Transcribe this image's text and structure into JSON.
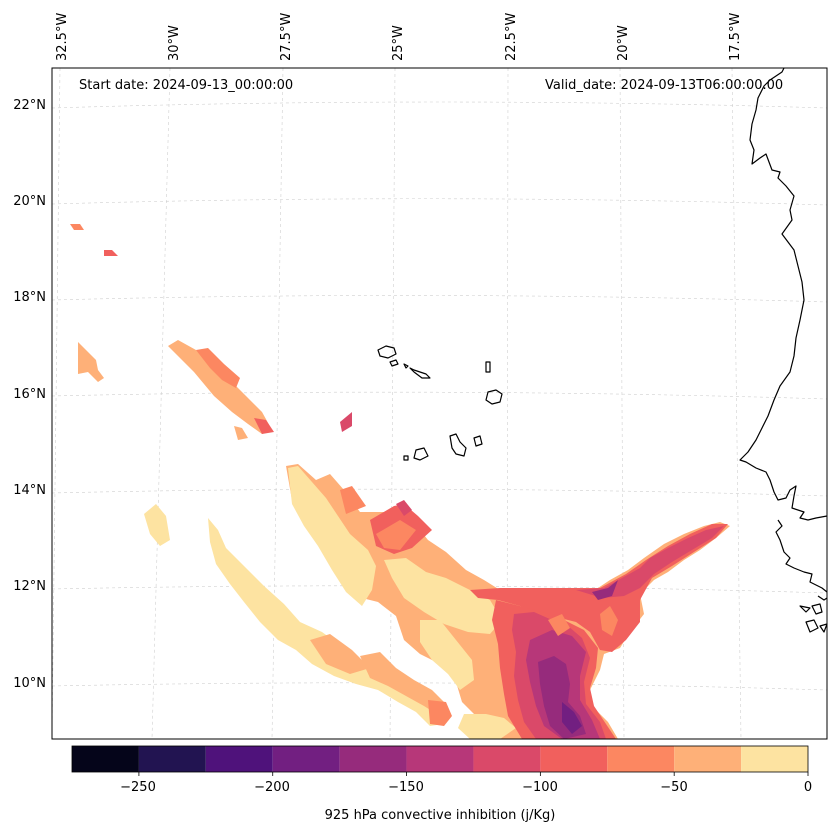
{
  "map": {
    "start_label": "Start date: 2024-09-13_00:00:00",
    "valid_label": "Valid_date: 2024-09-13T06:00:00.00",
    "lon_labels": [
      "32.5°W",
      "30°W",
      "27.5°W",
      "25°W",
      "22.5°W",
      "20°W",
      "17.5°W"
    ],
    "lat_labels": [
      "22°N",
      "20°N",
      "18°N",
      "16°N",
      "14°N",
      "12°N",
      "10°N"
    ],
    "variable": "925 hPa convective inhibition",
    "units": "j/Kg"
  },
  "colorbar": {
    "title": "925 hPa convective inhibition (j/Kg)",
    "ticks": [
      "−250",
      "−200",
      "−150",
      "−100",
      "−50",
      "0"
    ],
    "tick_values": [
      -250,
      -200,
      -150,
      -100,
      -50,
      0
    ],
    "range": [
      -275,
      0
    ],
    "levels": [
      -275,
      -250,
      -225,
      -200,
      -175,
      -150,
      -125,
      -100,
      -75,
      -50,
      -25,
      0
    ],
    "colors": [
      "#05051a",
      "#221451",
      "#4f127b",
      "#721f81",
      "#962b7c",
      "#b73779",
      "#da4969",
      "#f1605d",
      "#fc8761",
      "#feb078",
      "#fde3a1"
    ]
  }
}
